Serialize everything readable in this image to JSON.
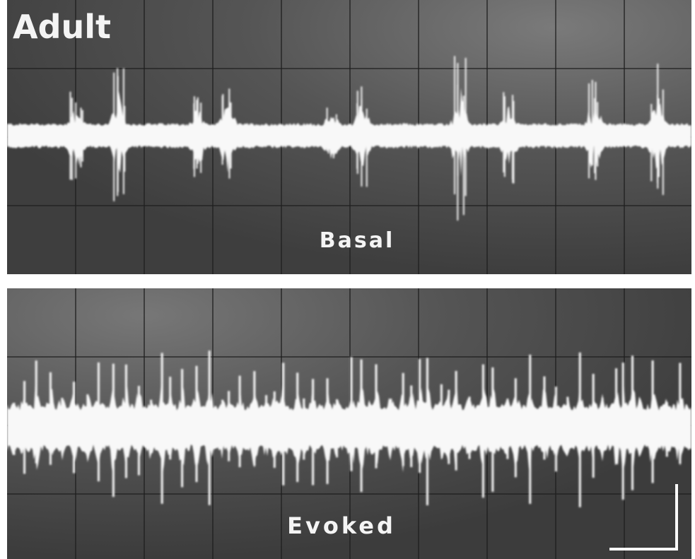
{
  "title": "Adult",
  "panels": [
    {
      "label": "Basal"
    },
    {
      "label": "Evoked"
    }
  ]
}
